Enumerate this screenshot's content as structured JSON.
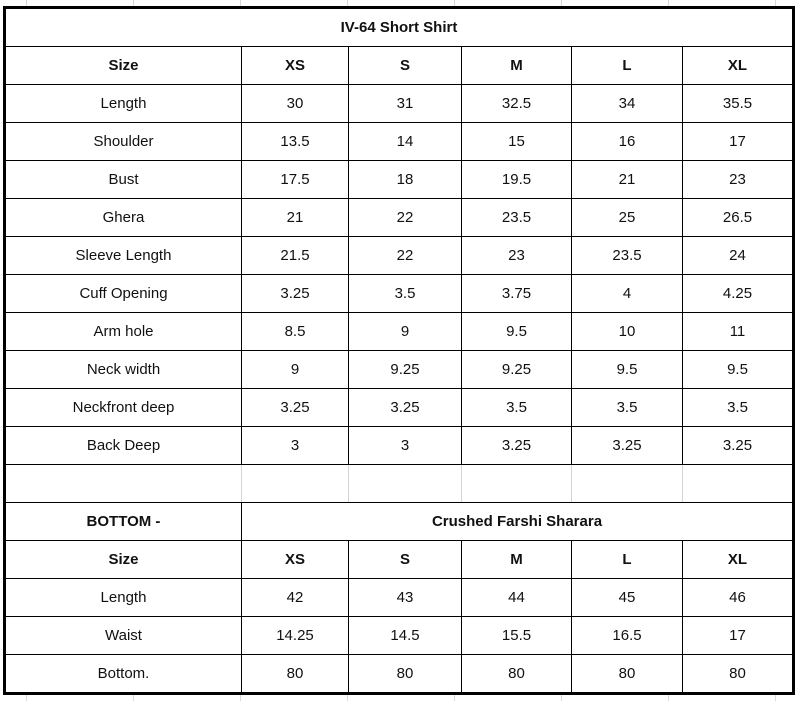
{
  "top": {
    "title": "IV-64 Short Shirt",
    "header": [
      "Size",
      "XS",
      "S",
      "M",
      "L",
      "XL"
    ],
    "rows": [
      [
        "Length",
        "30",
        "31",
        "32.5",
        "34",
        "35.5"
      ],
      [
        "Shoulder",
        "13.5",
        "14",
        "15",
        "16",
        "17"
      ],
      [
        "Bust",
        "17.5",
        "18",
        "19.5",
        "21",
        "23"
      ],
      [
        "Ghera",
        "21",
        "22",
        "23.5",
        "25",
        "26.5"
      ],
      [
        "Sleeve Length",
        "21.5",
        "22",
        "23",
        "23.5",
        "24"
      ],
      [
        "Cuff Opening",
        "3.25",
        "3.5",
        "3.75",
        "4",
        "4.25"
      ],
      [
        "Arm hole",
        "8.5",
        "9",
        "9.5",
        "10",
        "11"
      ],
      [
        "Neck width",
        "9",
        "9.25",
        "9.25",
        "9.5",
        "9.5"
      ],
      [
        "Neckfront deep",
        "3.25",
        "3.25",
        "3.5",
        "3.5",
        "3.5"
      ],
      [
        "Back Deep",
        "3",
        "3",
        "3.25",
        "3.25",
        "3.25"
      ]
    ]
  },
  "bottom": {
    "label": "BOTTOM -",
    "title": "Crushed Farshi Sharara",
    "header": [
      "Size",
      "XS",
      "S",
      "M",
      "L",
      "XL"
    ],
    "rows": [
      [
        "Length",
        "42",
        "43",
        "44",
        "45",
        "46"
      ],
      [
        "Waist",
        "14.25",
        "14.5",
        "15.5",
        "16.5",
        "17"
      ],
      [
        "Bottom.",
        "80",
        "80",
        "80",
        "80",
        "80"
      ]
    ]
  }
}
